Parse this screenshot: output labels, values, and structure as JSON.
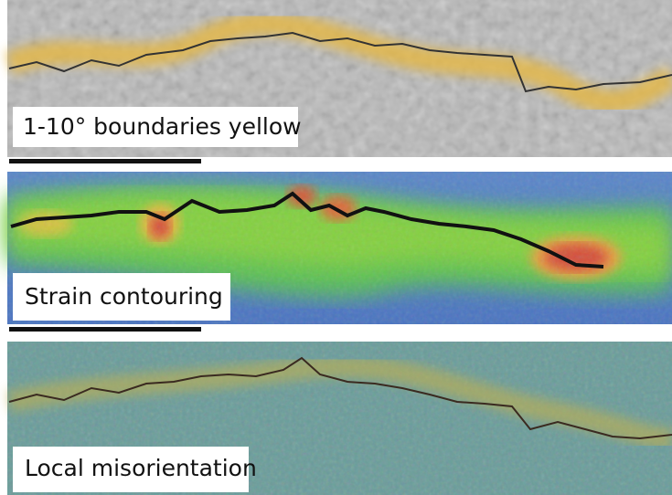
{
  "panels": [
    {
      "label": "1-10° boundaries yellow"
    },
    {
      "label": "Strain contouring"
    },
    {
      "label": "Local misorientation"
    }
  ]
}
